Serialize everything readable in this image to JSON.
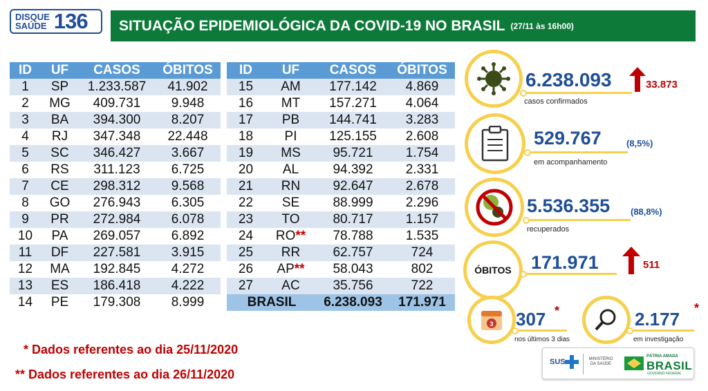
{
  "logo": {
    "line1": "DISQUE",
    "line2": "SAÚDE",
    "number": "136"
  },
  "header": {
    "title": "SITUAÇÃO EPIDEMIOLÓGICA DA COVID-19 NO BRASIL",
    "date": "(27/11 às 16h00)"
  },
  "table": {
    "headers": [
      "ID",
      "UF",
      "CASOS",
      "ÓBITOS"
    ],
    "left_rows": [
      [
        "1",
        "SP",
        "1.233.587",
        "41.902"
      ],
      [
        "2",
        "MG",
        "409.731",
        "9.948"
      ],
      [
        "3",
        "BA",
        "394.300",
        "8.207"
      ],
      [
        "4",
        "RJ",
        "347.348",
        "22.448"
      ],
      [
        "5",
        "SC",
        "346.427",
        "3.667"
      ],
      [
        "6",
        "RS",
        "311.123",
        "6.725"
      ],
      [
        "7",
        "CE",
        "298.312",
        "9.568"
      ],
      [
        "8",
        "GO",
        "276.943",
        "6.305"
      ],
      [
        "9",
        "PR",
        "272.984",
        "6.078"
      ],
      [
        "10",
        "PA",
        "269.057",
        "6.892"
      ],
      [
        "11",
        "DF",
        "227.581",
        "3.915"
      ],
      [
        "12",
        "MA",
        "192.845",
        "4.272"
      ],
      [
        "13",
        "ES",
        "186.418",
        "4.222"
      ],
      [
        "14",
        "PE",
        "179.308",
        "8.999"
      ]
    ],
    "right_rows": [
      [
        "15",
        "AM",
        "177.142",
        "4.869"
      ],
      [
        "16",
        "MT",
        "157.271",
        "4.064"
      ],
      [
        "17",
        "PB",
        "144.741",
        "3.283"
      ],
      [
        "18",
        "PI",
        "125.155",
        "2.608"
      ],
      [
        "19",
        "MS",
        "95.721",
        "1.754"
      ],
      [
        "20",
        "AL",
        "94.392",
        "2.331"
      ],
      [
        "21",
        "RN",
        "92.647",
        "2.678"
      ],
      [
        "22",
        "SE",
        "88.999",
        "2.296"
      ],
      [
        "23",
        "TO",
        "80.717",
        "1.157"
      ],
      [
        "24",
        "RO",
        "78.788",
        "1.535"
      ],
      [
        "25",
        "RR",
        "62.757",
        "724"
      ],
      [
        "26",
        "AP",
        "58.043",
        "802"
      ],
      [
        "27",
        "AC",
        "35.756",
        "722"
      ]
    ],
    "ro_mark": "**",
    "ap_mark": "**",
    "total": {
      "label": "BRASIL",
      "casos": "6.238.093",
      "obitos": "171.971"
    }
  },
  "notes": {
    "note1": "* Dados referentes ao dia 25/11/2020",
    "note2": "** Dados referentes ao dia 26/11/2020"
  },
  "stats": {
    "confirmados": {
      "value": "6.238.093",
      "increase": "33.873",
      "label": "casos confirmados",
      "icon": "virus-icon"
    },
    "acompanhamento": {
      "value": "529.767",
      "pct": "(8,5%)",
      "label": "em acompanhamento",
      "icon": "clipboard-icon"
    },
    "recuperados": {
      "value": "5.536.355",
      "pct": "(88,8%)",
      "label": "recuperados",
      "icon": "no-virus-icon"
    },
    "obitos": {
      "word": "ÓBITOS",
      "value": "171.971",
      "increase": "511"
    },
    "ultimos": {
      "value": "307",
      "star": "*",
      "label": "nos últimos 3 dias",
      "calendar_num": "3"
    },
    "investigacao": {
      "value": "2.177",
      "star": "*",
      "label": "em investigação",
      "icon": "magnifier-icon"
    }
  },
  "gov": {
    "sus": "SUS",
    "ministerio": "MINISTÉRIO DA SAÚDE",
    "patria": "PÁTRIA AMADA",
    "brasil": "BRASIL",
    "governo": "GOVERNO FEDERAL"
  },
  "colors": {
    "banner": "#0e7a3a",
    "table_header": "#5b9bd5",
    "row_alt": "#dbe5f1",
    "accent_blue": "#1f4e96",
    "accent_red": "#c00000",
    "ring_yellow": "#f6d04d"
  }
}
